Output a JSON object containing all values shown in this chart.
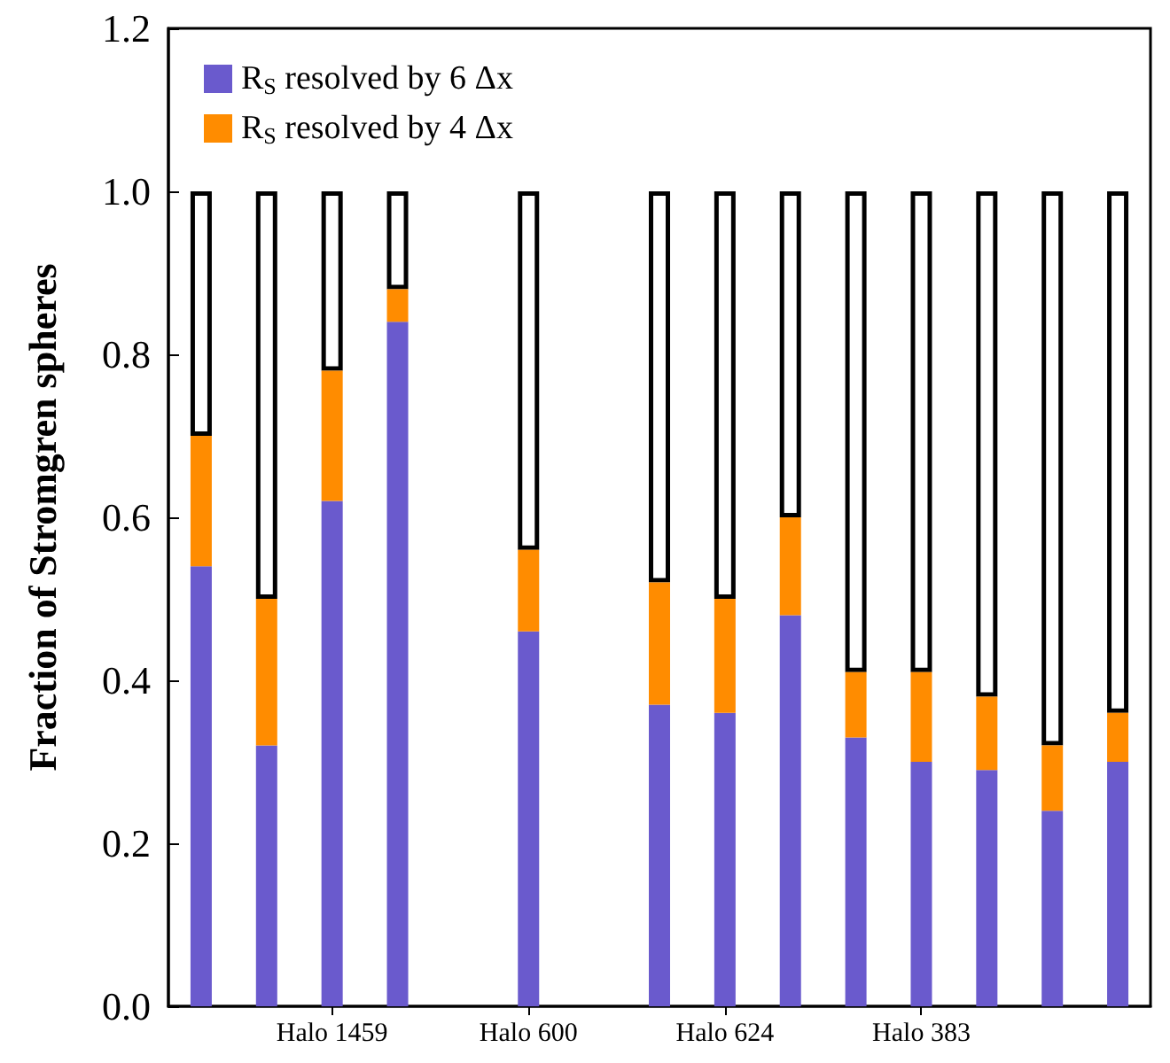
{
  "chart_data": {
    "type": "bar",
    "stacked": true,
    "ylabel": "Fraction of Stromgren spheres",
    "categories": [
      null,
      null,
      "Halo 1459",
      null,
      null,
      "Halo 600",
      null,
      null,
      "Halo 624",
      null,
      null,
      "Halo 383",
      null,
      null,
      null
    ],
    "series": [
      {
        "name": "R$_{S}$ resolved by 6 Δx",
        "color": "#6a5acd",
        "values": [
          0.54,
          0.32,
          0.62,
          0.84,
          null,
          0.46,
          null,
          0.37,
          0.36,
          0.48,
          0.33,
          0.3,
          0.29,
          0.24,
          0.3
        ]
      },
      {
        "name": "R$_{S}$ resolved by 4 Δx",
        "color": "#ff8c00",
        "values": [
          0.16,
          0.18,
          0.16,
          0.04,
          null,
          0.1,
          null,
          0.15,
          0.14,
          0.12,
          0.08,
          0.11,
          0.09,
          0.08,
          0.06
        ]
      },
      {
        "color": "#ffffff",
        "values": [
          0.3,
          0.5,
          0.22,
          0.12,
          null,
          0.44,
          null,
          0.48,
          0.5,
          0.4,
          0.59,
          0.59,
          0.62,
          0.68,
          0.64
        ]
      }
    ],
    "ylim": [
      0,
      1.2
    ],
    "yticks": [
      {
        "value": 0,
        "label": "0.0"
      },
      {
        "value": 0.2,
        "label": "0.2"
      },
      {
        "value": 0.4,
        "label": "0.4"
      },
      {
        "value": 0.6,
        "label": "0.6"
      },
      {
        "value": 0.8,
        "label": "0.8"
      },
      {
        "value": 1.0,
        "label": "1.0"
      },
      {
        "value": 1.2,
        "label": "1.2"
      }
    ],
    "grid": false,
    "legend": "top left"
  }
}
